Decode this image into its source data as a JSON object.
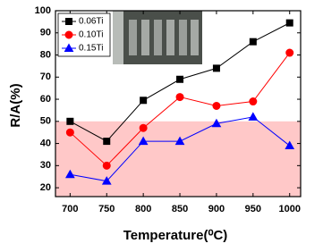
{
  "chart_data": {
    "type": "line",
    "x_label": "Temperature(⁰C)",
    "y_label": "R/A(%)",
    "x": [
      700,
      750,
      800,
      850,
      900,
      950,
      1000
    ],
    "series": [
      {
        "name": "0.06Ti",
        "color": "#000000",
        "marker": "square",
        "values": [
          50,
          41,
          59.5,
          69,
          74,
          86,
          94.5
        ]
      },
      {
        "name": "0.10Ti",
        "color": "#ff0000",
        "marker": "circle",
        "values": [
          45,
          30,
          47,
          61,
          57,
          59,
          81
        ]
      },
      {
        "name": "0.15Ti",
        "color": "#0000ff",
        "marker": "triangle",
        "values": [
          26,
          23,
          41,
          41,
          49,
          52,
          39
        ]
      }
    ],
    "xlim": [
      680,
      1015
    ],
    "ylim": [
      16,
      100
    ],
    "xticks": [
      700,
      750,
      800,
      850,
      900,
      950,
      1000
    ],
    "yticks": [
      20,
      30,
      40,
      50,
      60,
      70,
      80,
      90,
      100
    ],
    "shade_below": 50,
    "shade_color": "#ffc8c8",
    "legend": "upper-left"
  }
}
